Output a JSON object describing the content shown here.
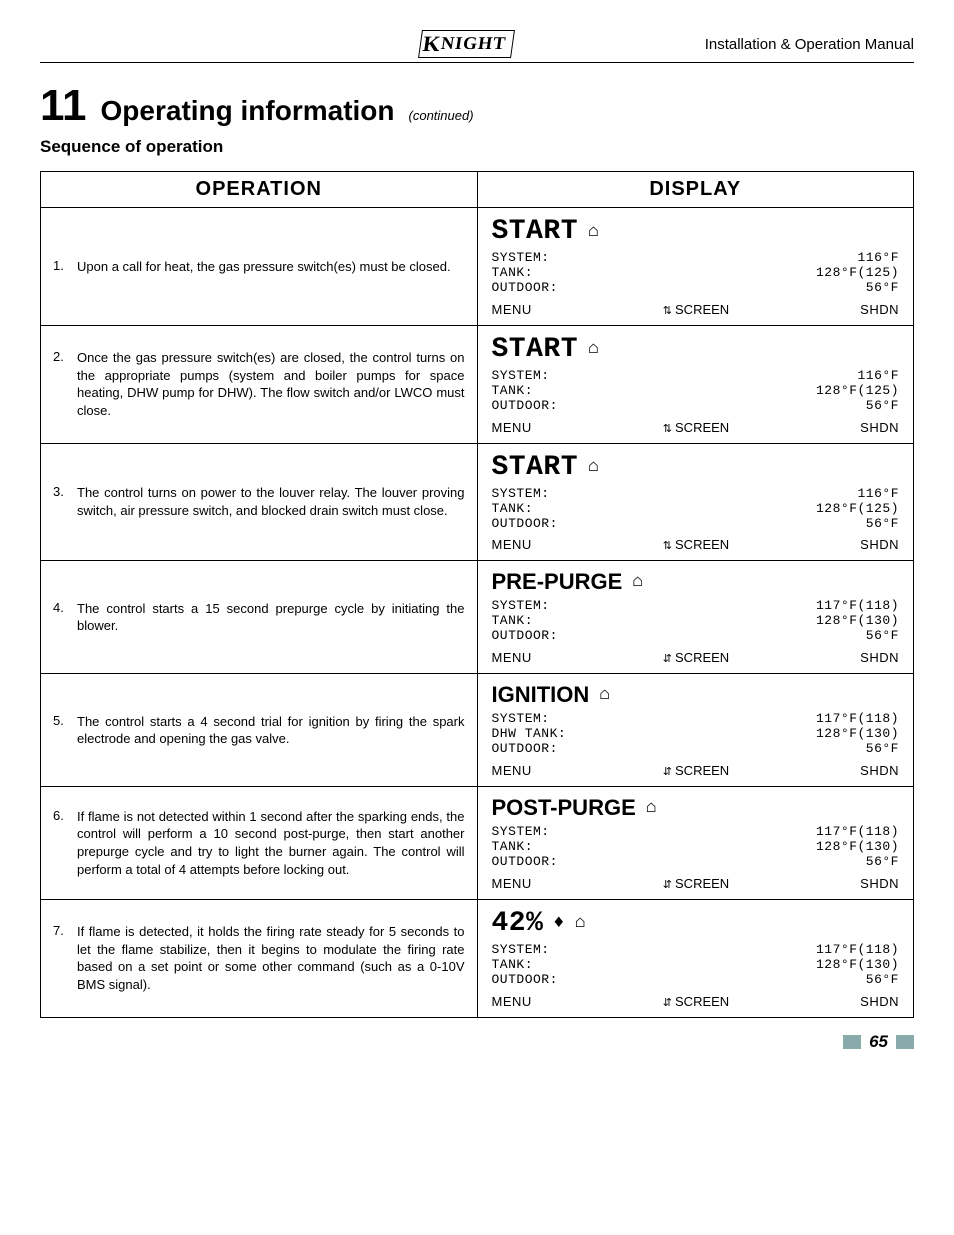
{
  "header": {
    "brand": "KNIGHT",
    "manual_title": "Installation & Operation Manual"
  },
  "section": {
    "number": "11",
    "title": "Operating information",
    "continued": "(continued)",
    "subhead": "Sequence of operation"
  },
  "table": {
    "col_operation": "OPERATION",
    "col_display": "DISPLAY"
  },
  "display_common": {
    "menu": "MENU",
    "screen": "SCREEN",
    "shdn": "SHDN",
    "home_glyph": "⌂"
  },
  "rows": [
    {
      "num": "1.",
      "text": "Upon a call for heat, the gas pressure switch(es) must be closed.",
      "justify": false,
      "display": {
        "state": "START",
        "state_style": "big",
        "labels": "SYSTEM:\nTANK:\nOUTDOOR:",
        "values": "116°F\n128°F(125)\n56°F",
        "arrow_glyph": "⇅"
      }
    },
    {
      "num": "2.",
      "text": "Once the gas pressure switch(es) are closed, the control turns on the appropriate pumps (system and boiler pumps for space heating, DHW pump for DHW). The flow switch and/or LWCO must close.",
      "justify": true,
      "display": {
        "state": "START",
        "state_style": "big",
        "labels": "SYSTEM:\nTANK:\nOUTDOOR:",
        "values": "116°F\n128°F(125)\n56°F",
        "arrow_glyph": "⇅"
      }
    },
    {
      "num": "3.",
      "text": "The control turns on power to the louver relay. The louver proving switch, air pressure switch, and blocked drain switch must close.",
      "justify": true,
      "display": {
        "state": "START",
        "state_style": "big",
        "labels": "SYSTEM:\nTANK:\nOUTDOOR:",
        "values": "116°F\n128°F(125)\n56°F",
        "arrow_glyph": "⇅"
      }
    },
    {
      "num": "4.",
      "text": "The control starts a 15 second prepurge cycle by initiating the blower.",
      "justify": true,
      "display": {
        "state": "PRE-PURGE",
        "state_style": "med",
        "labels": "SYSTEM:\nTANK:\nOUTDOOR:",
        "values": "117°F(118)\n128°F(130)\n56°F",
        "arrow_glyph": "⇵"
      }
    },
    {
      "num": "5.",
      "text": "The control starts a 4 second trial for ignition by firing the spark electrode and opening the gas valve.",
      "justify": true,
      "display": {
        "state": "IGNITION",
        "state_style": "med",
        "labels": "SYSTEM:\nDHW TANK:\nOUTDOOR:",
        "values": "117°F(118)\n128°F(130)\n56°F",
        "arrow_glyph": "⇵"
      }
    },
    {
      "num": "6.",
      "text": "If flame is not detected within 1 second after the sparking ends, the control will perform a 10 second post-purge, then start another prepurge cycle and try to light the burner again.  The control will perform a total of 4 attempts before locking out.",
      "justify": true,
      "display": {
        "state": "POST-PURGE",
        "state_style": "med",
        "labels": "SYSTEM:\nTANK:\nOUTDOOR:",
        "values": "117°F(118)\n128°F(130)\n56°F",
        "arrow_glyph": "⇵"
      }
    },
    {
      "num": "7.",
      "text": "If flame is detected, it holds the firing rate steady for 5 seconds to let the flame stabilize, then it begins to modulate the firing rate based on a set point or some other command (such as a 0-10V BMS signal).",
      "justify": true,
      "display": {
        "state": "42%",
        "state_style": "big",
        "flame": "♦",
        "labels": "SYSTEM:\nTANK:\nOUTDOOR:",
        "values": "117°F(118)\n128°F(130)\n56°F",
        "arrow_glyph": "⇵"
      }
    }
  ],
  "page_number": "65"
}
